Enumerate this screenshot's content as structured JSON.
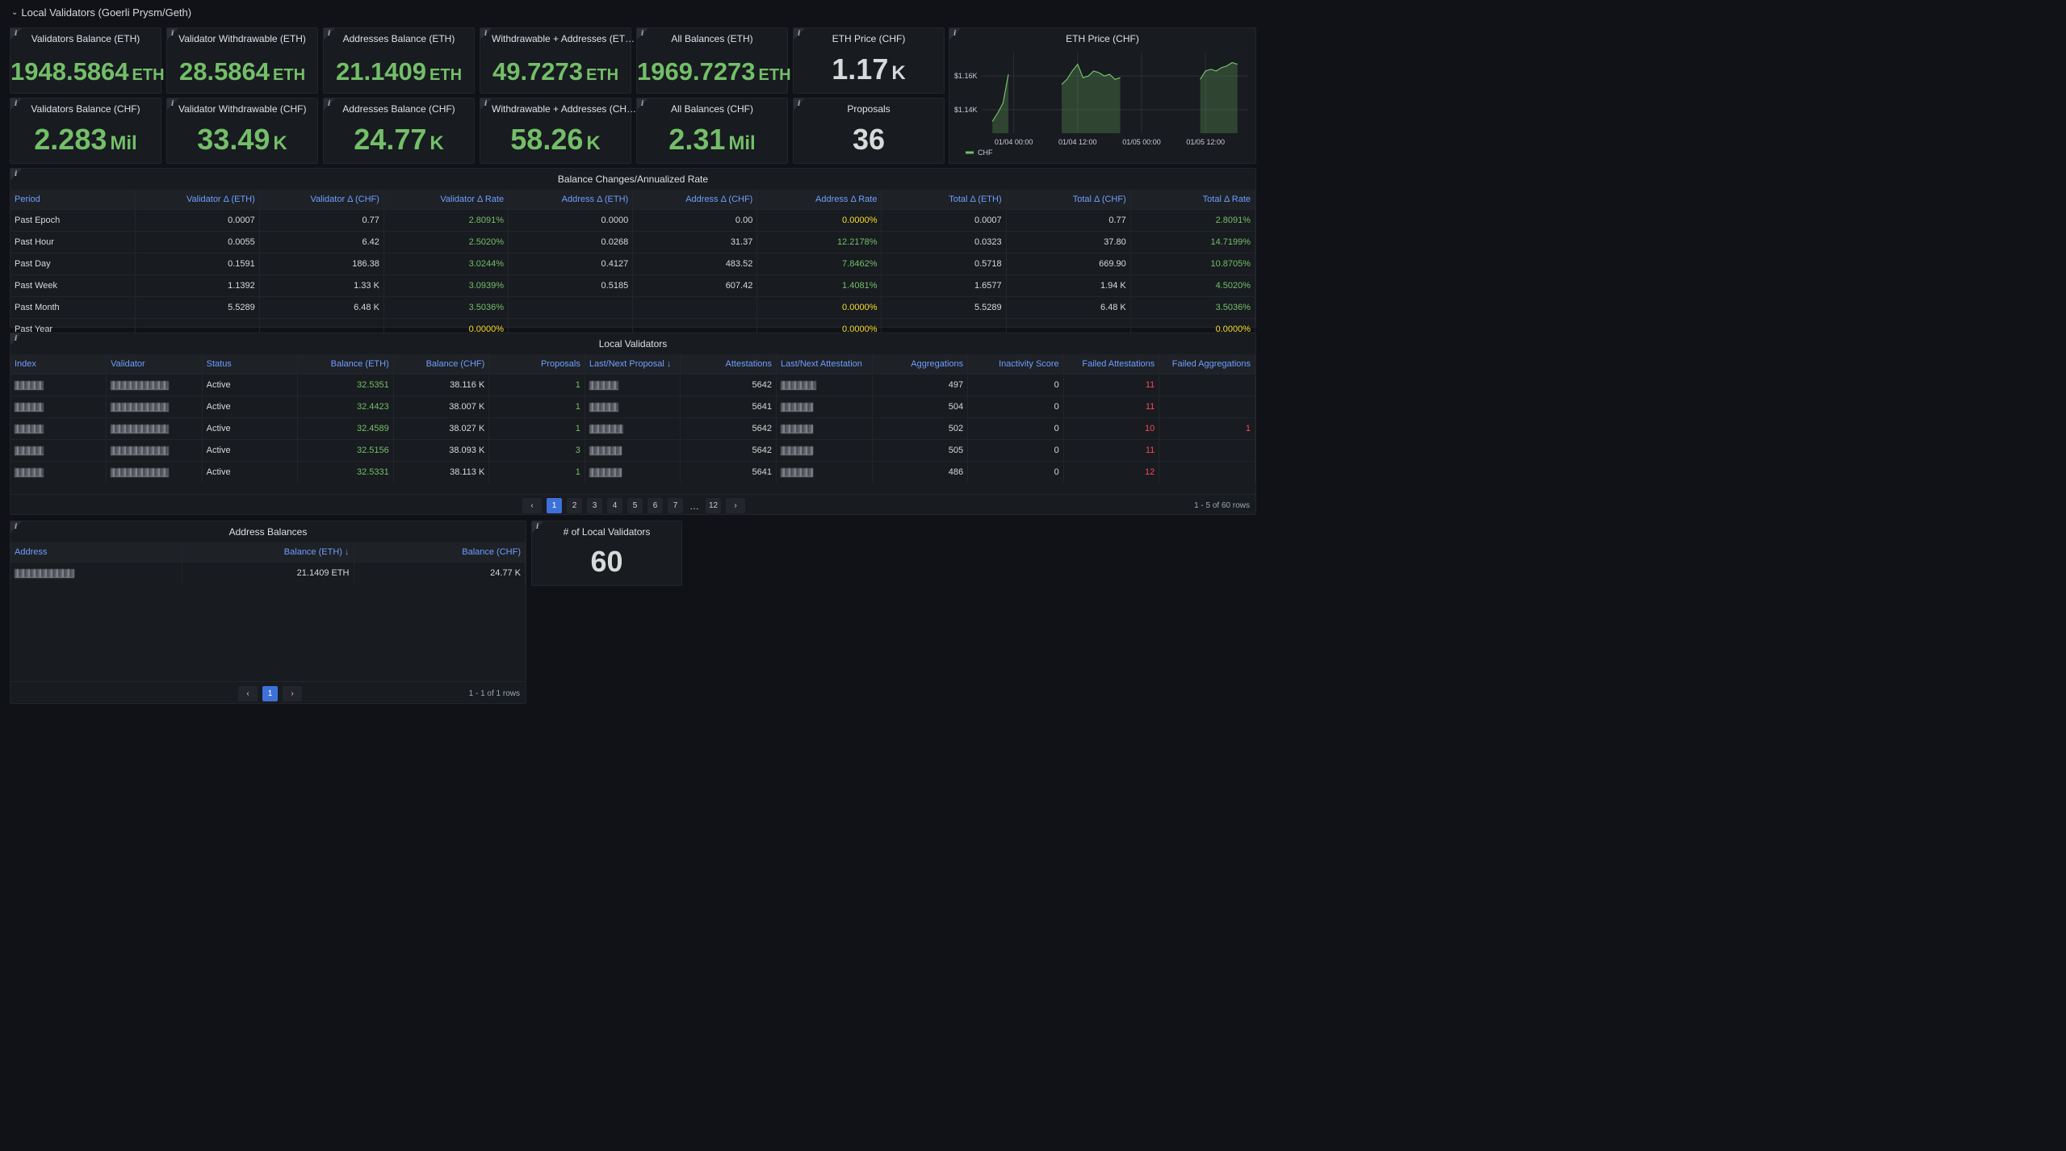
{
  "dashboard": {
    "row_title": "Local Validators (Goerli Prysm/Geth)",
    "info_glyph": "i"
  },
  "stats": [
    {
      "title": "Validators Balance (ETH)",
      "value": "1948.5864",
      "unit": "ETH"
    },
    {
      "title": "Validator Withdrawable (ETH)",
      "value": "28.5864",
      "unit": "ETH"
    },
    {
      "title": "Addresses Balance (ETH)",
      "value": "21.1409",
      "unit": "ETH"
    },
    {
      "title": "Withdrawable + Addresses (ET…",
      "value": "49.7273",
      "unit": "ETH"
    },
    {
      "title": "All Balances (ETH)",
      "value": "1969.7273",
      "unit": "ETH"
    },
    {
      "title": "ETH Price (CHF)",
      "value": "1.17",
      "unit": "K"
    },
    {
      "title": "Validators Balance (CHF)",
      "value": "2.283",
      "unit": "Mil"
    },
    {
      "title": "Validator Withdrawable (CHF)",
      "value": "33.49",
      "unit": "K"
    },
    {
      "title": "Addresses Balance (CHF)",
      "value": "24.77",
      "unit": "K"
    },
    {
      "title": "Withdrawable + Addresses (CH…",
      "value": "58.26",
      "unit": "K"
    },
    {
      "title": "All Balances (CHF)",
      "value": "2.31",
      "unit": "Mil"
    },
    {
      "title": "Proposals",
      "value": "36",
      "unit": ""
    }
  ],
  "price_chart": {
    "title": "ETH Price (CHF)",
    "y_ticks": [
      "$1.16K",
      "$1.14K"
    ],
    "x_ticks": [
      "01/04 00:00",
      "01/04 12:00",
      "01/05 00:00",
      "01/05 12:00"
    ],
    "legend": "CHF",
    "color": "#73bf69"
  },
  "chart_data": {
    "type": "area",
    "title": "ETH Price (CHF)",
    "series": [
      {
        "name": "CHF",
        "x": [
          "01/03 20:00",
          "01/03 21:00",
          "01/03 22:00",
          "01/03 23:00",
          "01/04 09:00",
          "01/04 10:00",
          "01/04 11:00",
          "01/04 12:00",
          "01/04 13:00",
          "01/04 14:00",
          "01/04 15:00",
          "01/04 16:00",
          "01/04 17:00",
          "01/04 18:00",
          "01/04 19:00",
          "01/04 20:00",
          "01/05 11:00",
          "01/05 12:00",
          "01/05 13:00",
          "01/05 14:00",
          "01/05 15:00",
          "01/05 16:00",
          "01/05 17:00",
          "01/05 18:00"
        ],
        "y": [
          1133,
          1138,
          1144,
          1161,
          1155,
          1158,
          1163,
          1167,
          1159,
          1160,
          1163,
          1162,
          1160,
          1161,
          1158,
          1159,
          1158,
          1163,
          1164,
          1163,
          1165,
          1166,
          1168,
          1167
        ]
      }
    ],
    "ylim": [
      1126,
      1174
    ],
    "y_ticks": [
      1160,
      1140
    ],
    "grid": true,
    "legend_position": "bottom-left"
  },
  "balance_changes": {
    "title": "Balance Changes/Annualized Rate",
    "columns": [
      "Period",
      "Validator Δ (ETH)",
      "Validator Δ (CHF)",
      "Validator Δ Rate",
      "Address Δ (ETH)",
      "Address Δ (CHF)",
      "Address Δ Rate",
      "Total Δ (ETH)",
      "Total Δ (CHF)",
      "Total Δ Rate"
    ],
    "rows": [
      [
        "Past Epoch",
        "0.0007",
        "0.77",
        "2.8091%",
        "0.0000",
        "0.00",
        "0.0000%",
        "0.0007",
        "0.77",
        "2.8091%"
      ],
      [
        "Past Hour",
        "0.0055",
        "6.42",
        "2.5020%",
        "0.0268",
        "31.37",
        "12.2178%",
        "0.0323",
        "37.80",
        "14.7199%"
      ],
      [
        "Past Day",
        "0.1591",
        "186.38",
        "3.0244%",
        "0.4127",
        "483.52",
        "7.8462%",
        "0.5718",
        "669.90",
        "10.8705%"
      ],
      [
        "Past Week",
        "1.1392",
        "1.33 K",
        "3.0939%",
        "0.5185",
        "607.42",
        "1.4081%",
        "1.6577",
        "1.94 K",
        "4.5020%"
      ],
      [
        "Past Month",
        "5.5289",
        "6.48 K",
        "3.5036%",
        "",
        "",
        "0.0000%",
        "5.5289",
        "6.48 K",
        "3.5036%"
      ],
      [
        "Past Year",
        "",
        "",
        "0.0000%",
        "",
        "",
        "0.0000%",
        "",
        "",
        "0.0000%"
      ]
    ]
  },
  "local_validators": {
    "title": "Local Validators",
    "columns": [
      "Index",
      "Validator",
      "Status",
      "Balance (ETH)",
      "Balance (CHF)",
      "Proposals",
      "Last/Next Proposal ↓",
      "Attestations",
      "Last/Next Attestation",
      "Aggregations",
      "Inactivity Score",
      "Failed Attestations",
      "Failed Aggregations"
    ],
    "rows": [
      {
        "status": "Active",
        "bal_eth": "32.5351",
        "bal_chf": "38.116 K",
        "proposals": "1",
        "attestations": "5642",
        "aggregations": "497",
        "inactivity": "0",
        "failed_att": "11",
        "failed_agg": ""
      },
      {
        "status": "Active",
        "bal_eth": "32.4423",
        "bal_chf": "38.007 K",
        "proposals": "1",
        "attestations": "5641",
        "aggregations": "504",
        "inactivity": "0",
        "failed_att": "11",
        "failed_agg": ""
      },
      {
        "status": "Active",
        "bal_eth": "32.4589",
        "bal_chf": "38.027 K",
        "proposals": "1",
        "attestations": "5642",
        "aggregations": "502",
        "inactivity": "0",
        "failed_att": "10",
        "failed_agg": "1"
      },
      {
        "status": "Active",
        "bal_eth": "32.5156",
        "bal_chf": "38.093 K",
        "proposals": "3",
        "attestations": "5642",
        "aggregations": "505",
        "inactivity": "0",
        "failed_att": "11",
        "failed_agg": ""
      },
      {
        "status": "Active",
        "bal_eth": "32.5331",
        "bal_chf": "38.113 K",
        "proposals": "1",
        "attestations": "5641",
        "aggregations": "486",
        "inactivity": "0",
        "failed_att": "12",
        "failed_agg": ""
      }
    ],
    "pager": {
      "prev": "‹",
      "next": "›",
      "pages": [
        "1",
        "2",
        "3",
        "4",
        "5",
        "6",
        "7"
      ],
      "ellipsis": "…",
      "last": "12",
      "active": "1"
    },
    "row_count": "1 - 5 of 60 rows"
  },
  "address_balances": {
    "title": "Address Balances",
    "columns": [
      "Address",
      "Balance (ETH) ↓",
      "Balance (CHF)"
    ],
    "rows": [
      {
        "bal_eth": "21.1409 ETH",
        "bal_chf": "24.77 K"
      }
    ],
    "pager": {
      "prev": "‹",
      "next": "›",
      "page": "1"
    },
    "row_count": "1 - 1 of 1 rows"
  },
  "num_validators": {
    "title": "# of Local Validators",
    "value": "60"
  }
}
